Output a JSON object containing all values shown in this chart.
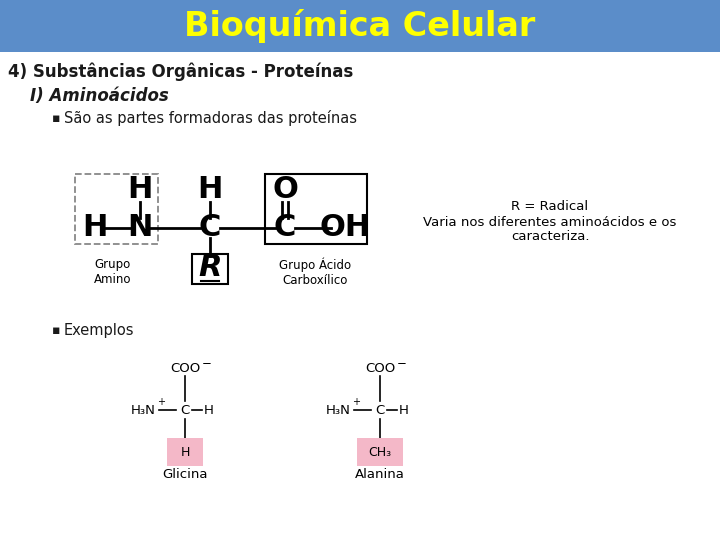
{
  "title": "Bioquímica Celular",
  "title_bg": "#5b8dc9",
  "title_color": "#ffff00",
  "bg_color": "#ffffff",
  "section_title": "4) Substâncias Orgânicas - Proteínas",
  "subsection": "I) Aminoácidos",
  "bullet1": "São as partes formadoras das proteínas",
  "bullet2": "Exemplos",
  "radical_note1": "R = Radical",
  "radical_note2": "Varia nos diferentes aminoácidos e os",
  "radical_note3": "caracteriza.",
  "grupo_amino": "Grupo\nAmino",
  "grupo_acido": "Grupo Ácido\nCarboxílico",
  "glicina": "Glicina",
  "alanina": "Alanina",
  "R_color": "#f4b8c8"
}
